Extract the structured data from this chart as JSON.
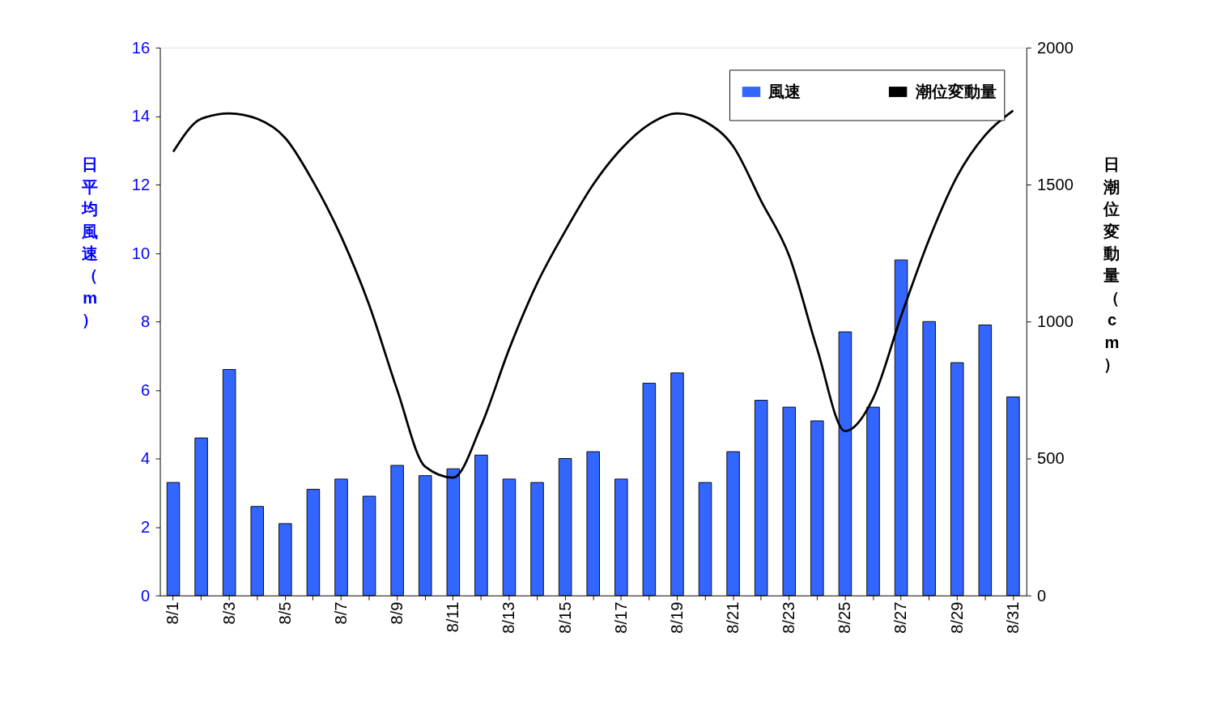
{
  "chart_data": {
    "type": "bar",
    "categories": [
      "8/1",
      null,
      "8/3",
      null,
      "8/5",
      null,
      "8/7",
      null,
      "8/9",
      null,
      "8/11",
      null,
      "8/13",
      null,
      "8/15",
      null,
      "8/17",
      null,
      "8/19",
      null,
      "8/21",
      null,
      "8/23",
      null,
      "8/25",
      null,
      "8/27",
      null,
      "8/29",
      null,
      "8/31"
    ],
    "series": [
      {
        "name": "風速",
        "color": "#3366ff",
        "values": [
          3.3,
          4.6,
          6.6,
          2.6,
          2.1,
          3.1,
          3.4,
          2.9,
          3.8,
          3.5,
          3.7,
          4.1,
          3.4,
          3.3,
          4.0,
          4.2,
          3.4,
          6.2,
          6.5,
          3.3,
          4.2,
          5.7,
          5.5,
          5.1,
          7.7,
          5.5,
          9.8,
          8.0,
          6.8,
          7.9,
          5.8
        ]
      },
      {
        "name": "潮位変動量",
        "type": "line",
        "axis": "y2",
        "color": "#000000",
        "values": [
          1620,
          1740,
          1760,
          1740,
          1670,
          1510,
          1310,
          1060,
          750,
          470,
          430,
          620,
          900,
          1140,
          1330,
          1500,
          1630,
          1720,
          1760,
          1730,
          1640,
          1440,
          1240,
          900,
          600,
          720,
          1020,
          1300,
          1530,
          1680,
          1770
        ]
      }
    ],
    "ylabel": "日平均風速（m）",
    "y2label": "日潮位変動量（cm）",
    "ylim": [
      0,
      16
    ],
    "yticks": [
      0,
      2,
      4,
      6,
      8,
      10,
      12,
      14,
      16
    ],
    "y2lim": [
      0,
      2000
    ],
    "y2ticks": [
      0,
      500,
      1000,
      1500,
      2000
    ],
    "legend": "top right",
    "grid": false,
    "marker": "none",
    "line_style": "solid"
  }
}
